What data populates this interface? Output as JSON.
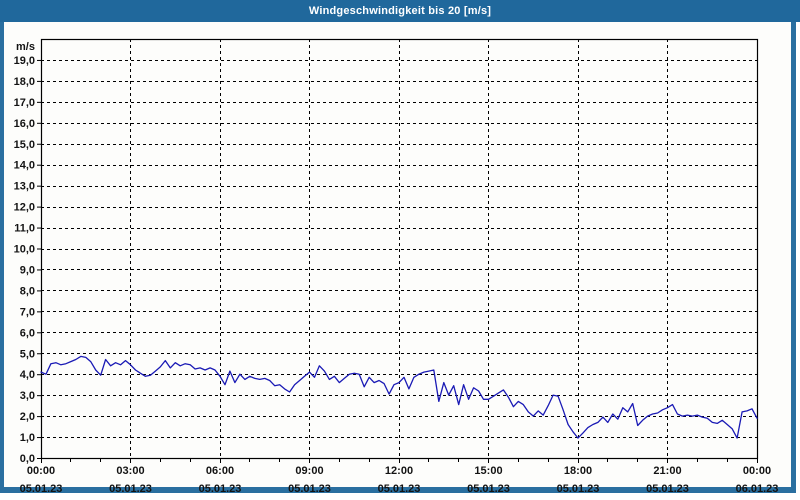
{
  "window": {
    "title": "Windgeschwindigkeit bis 20 [m/s]"
  },
  "colors": {
    "titlebar_bg": "#20689c",
    "titlebar_text": "#ffffff",
    "frame": "#2a6fa0",
    "panel_bg": "#fdfdfb",
    "plot_border": "#000000",
    "grid": "#000000",
    "line": "#1a1ab5",
    "label_text": "#131313"
  },
  "chart_data": {
    "type": "line",
    "title": "Windgeschwindigkeit bis 20 [m/s]",
    "unit_label": "m/s",
    "ylim": [
      0,
      20
    ],
    "ytick_step": 1.0,
    "ytick_labels": [
      "0,0",
      "1,0",
      "2,0",
      "3,0",
      "4,0",
      "5,0",
      "6,0",
      "7,0",
      "8,0",
      "9,0",
      "10,0",
      "11,0",
      "12,0",
      "13,0",
      "14,0",
      "15,0",
      "16,0",
      "17,0",
      "18,0",
      "19,0"
    ],
    "xlim_hours": [
      0,
      24
    ],
    "x_minor_step_hours": 1,
    "x_major_step_hours": 3,
    "x_major_ticks": [
      {
        "time": "00:00",
        "date": "05.01.23"
      },
      {
        "time": "03:00",
        "date": "05.01.23"
      },
      {
        "time": "06:00",
        "date": "05.01.23"
      },
      {
        "time": "09:00",
        "date": "05.01.23"
      },
      {
        "time": "12:00",
        "date": "05.01.23"
      },
      {
        "time": "15:00",
        "date": "05.01.23"
      },
      {
        "time": "18:00",
        "date": "05.01.23"
      },
      {
        "time": "21:00",
        "date": "05.01.23"
      },
      {
        "time": "00:00",
        "date": "06.01.23"
      }
    ],
    "grid": "dashed",
    "series": [
      {
        "name": "Windgeschwindigkeit",
        "x_start_hour": 0,
        "x_step_minutes": 10,
        "values": [
          4.1,
          4.0,
          4.5,
          4.55,
          4.45,
          4.5,
          4.6,
          4.7,
          4.85,
          4.8,
          4.6,
          4.2,
          3.95,
          4.7,
          4.4,
          4.55,
          4.45,
          4.65,
          4.45,
          4.2,
          4.05,
          3.9,
          3.95,
          4.15,
          4.35,
          4.65,
          4.3,
          4.55,
          4.4,
          4.5,
          4.45,
          4.25,
          4.3,
          4.2,
          4.3,
          4.2,
          3.9,
          3.5,
          4.15,
          3.6,
          4.0,
          3.75,
          3.9,
          3.8,
          3.75,
          3.8,
          3.7,
          3.45,
          3.5,
          3.3,
          3.15,
          3.5,
          3.7,
          3.9,
          4.1,
          3.85,
          4.4,
          4.15,
          3.75,
          3.9,
          3.6,
          3.8,
          4.0,
          4.05,
          4.0,
          3.4,
          3.85,
          3.6,
          3.7,
          3.55,
          3.05,
          3.5,
          3.6,
          3.85,
          3.3,
          3.85,
          4.0,
          4.1,
          4.15,
          4.2,
          2.7,
          3.6,
          3.0,
          3.45,
          2.55,
          3.5,
          2.8,
          3.35,
          3.2,
          2.8,
          2.8,
          2.95,
          3.1,
          3.25,
          2.9,
          2.45,
          2.7,
          2.55,
          2.2,
          2.0,
          2.25,
          2.05,
          2.5,
          3.0,
          2.95,
          2.3,
          1.6,
          1.25,
          0.95,
          1.2,
          1.45,
          1.6,
          1.7,
          1.95,
          1.7,
          2.1,
          1.85,
          2.4,
          2.2,
          2.6,
          1.55,
          1.8,
          2.0,
          2.1,
          2.15,
          2.3,
          2.4,
          2.55,
          2.1,
          2.0,
          2.05,
          2.0,
          2.05,
          1.95,
          1.9,
          1.7,
          1.65,
          1.8,
          1.6,
          1.4,
          0.95,
          2.2,
          2.25,
          2.35,
          1.9
        ]
      }
    ]
  }
}
